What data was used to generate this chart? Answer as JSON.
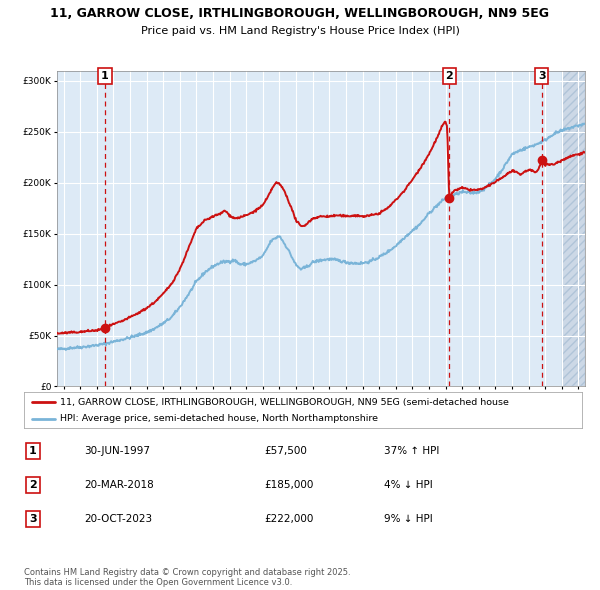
{
  "title_line1": "11, GARROW CLOSE, IRTHLINGBOROUGH, WELLINGBOROUGH, NN9 5EG",
  "title_line2": "Price paid vs. HM Land Registry's House Price Index (HPI)",
  "legend_line1": "11, GARROW CLOSE, IRTHLINGBOROUGH, WELLINGBOROUGH, NN9 5EG (semi-detached house",
  "legend_line2": "HPI: Average price, semi-detached house, North Northamptonshire",
  "sale_points": [
    {
      "label": "1",
      "date": "30-JUN-1997",
      "date_num": 1997.49,
      "price": 57500,
      "hpi_pct": "37% ↑ HPI"
    },
    {
      "label": "2",
      "date": "20-MAR-2018",
      "date_num": 2018.22,
      "price": 185000,
      "hpi_pct": "4% ↓ HPI"
    },
    {
      "label": "3",
      "date": "20-OCT-2023",
      "date_num": 2023.8,
      "price": 222000,
      "hpi_pct": "9% ↓ HPI"
    }
  ],
  "hpi_color": "#7ab4d8",
  "price_color": "#cc1111",
  "bg_color": "#ddeaf6",
  "hatch_bg_color": "#ccd8e6",
  "grid_color": "#ffffff",
  "dashed_line_color": "#cc1111",
  "ylim": [
    0,
    310000
  ],
  "xlim_start": 1994.6,
  "xlim_end": 2026.4,
  "footer_text": "Contains HM Land Registry data © Crown copyright and database right 2025.\nThis data is licensed under the Open Government Licence v3.0."
}
